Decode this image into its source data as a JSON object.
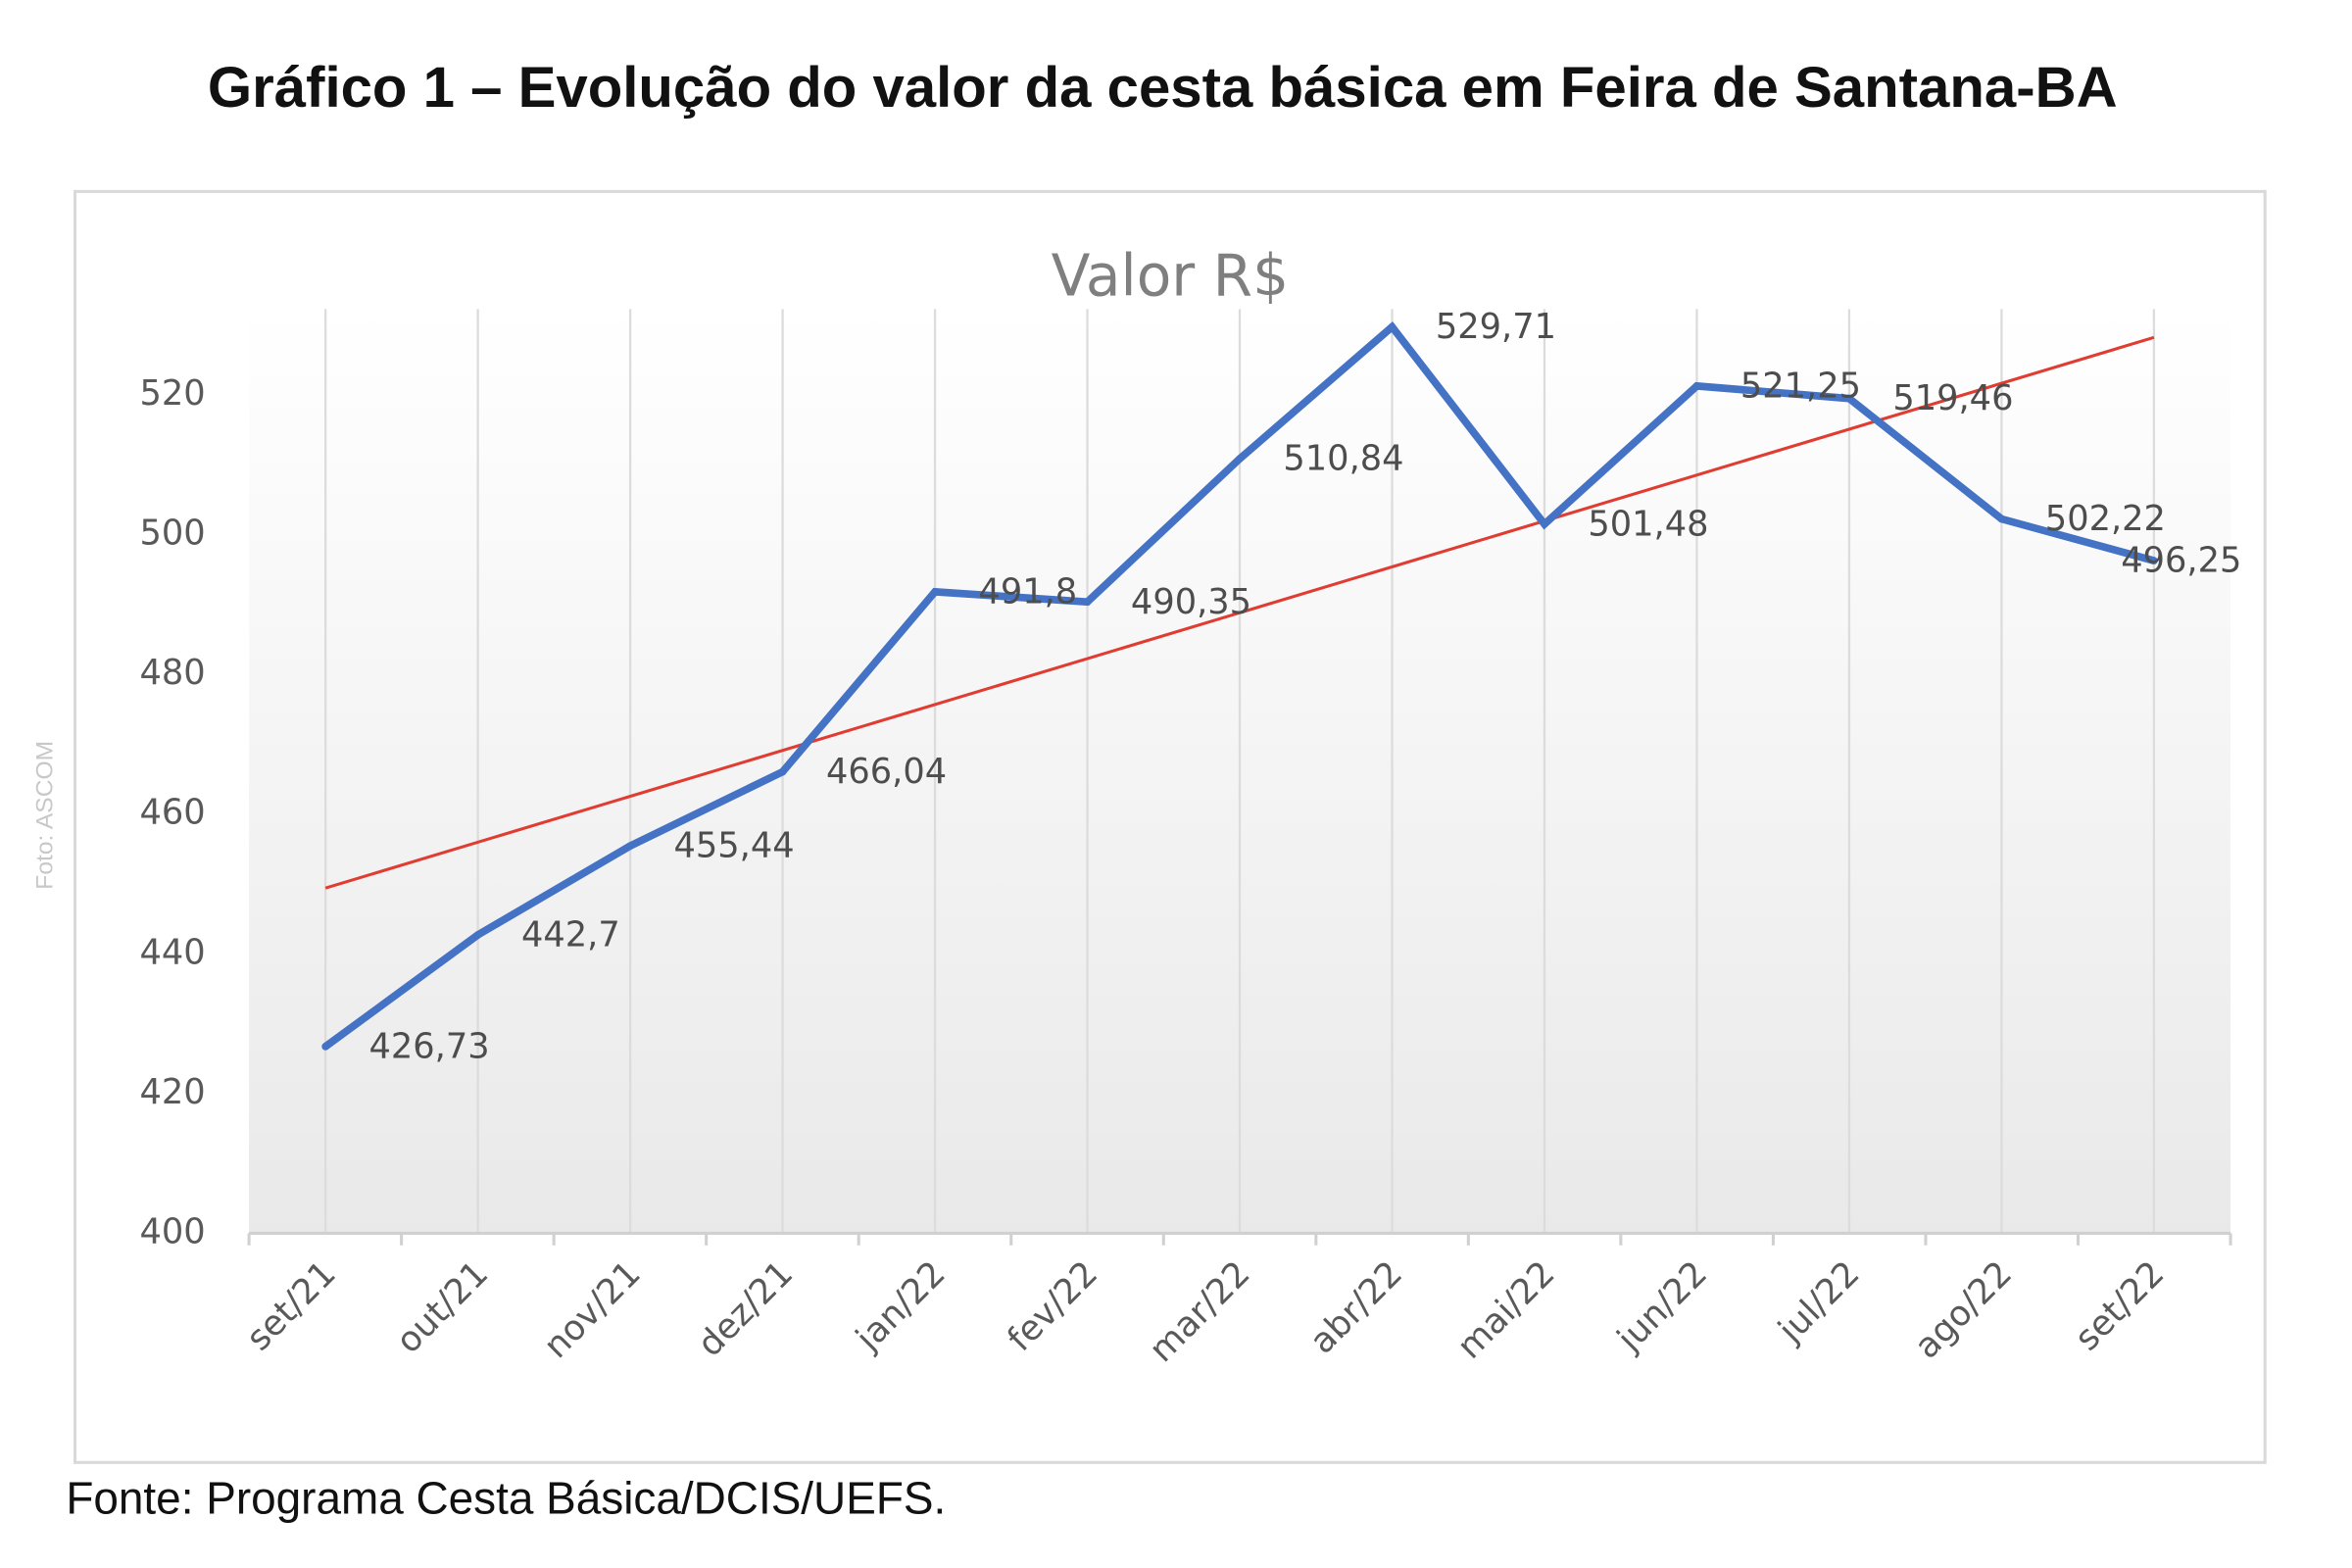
{
  "figure_title": "Gráfico 1 – Evolução do valor da cesta básica em Feira de Santana-BA",
  "source": "Fonte: Programa Cesta Básica/DCIS/UEFS.",
  "photo_credit": "Foto: ASCOM",
  "chart_data": {
    "type": "line",
    "title": "Valor R$",
    "xlabel": "",
    "ylabel": "",
    "categories": [
      "set/21",
      "out/21",
      "nov/21",
      "dez/21",
      "jan/22",
      "fev/22",
      "mar/22",
      "abr/22",
      "mai/22",
      "jun/22",
      "jul/22",
      "ago/22",
      "set/22"
    ],
    "series": [
      {
        "values": [
          426.73,
          442.7,
          455.44,
          466.04,
          491.8,
          490.35,
          510.84,
          529.71,
          501.48,
          521.25,
          519.46,
          502.22,
          496.25
        ],
        "labels": [
          "426,73",
          "442,7",
          "455,44",
          "466,04",
          "491,8",
          "490,35",
          "510,84",
          "529,71",
          "501,48",
          "521,25",
          "519,46",
          "502,22",
          "496,25"
        ],
        "color": "#4472c4"
      }
    ],
    "trendline": {
      "type": "linear",
      "start": 449.4,
      "end": 528.2,
      "color": "#e03c31"
    },
    "ylim": [
      400,
      535
    ],
    "yticks": [
      "400",
      "420",
      "440",
      "460",
      "480",
      "500",
      "520"
    ],
    "grid": "vertical",
    "legend": "none"
  }
}
